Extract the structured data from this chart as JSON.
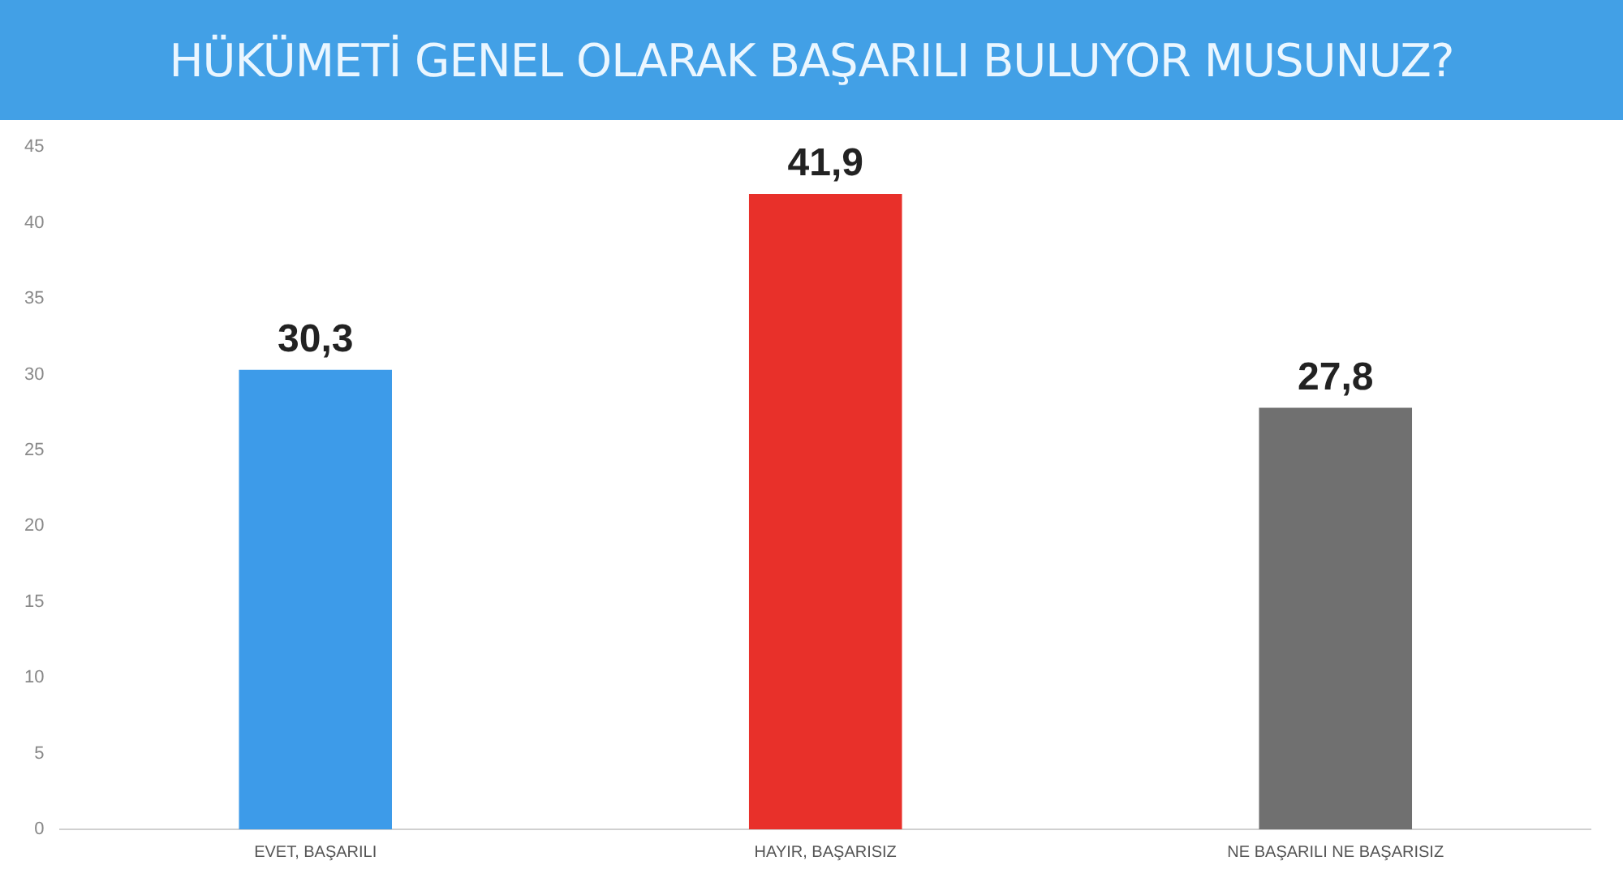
{
  "chart_data": {
    "type": "bar",
    "title": "HÜKÜMETİ GENEL OLARAK BAŞARILI BULUYOR MUSUNUZ?",
    "categories": [
      "EVET, BAŞARILI",
      "HAYIR, BAŞARISIZ",
      "NE BAŞARILI NE BAŞARISIZ"
    ],
    "values": [
      30.3,
      41.9,
      27.8
    ],
    "colors": [
      "#3d9be9",
      "#e8302a",
      "#707070"
    ],
    "ylim": [
      0,
      45
    ],
    "yticks": [
      0,
      5,
      10,
      15,
      20,
      25,
      30,
      35,
      40,
      45
    ],
    "value_labels": [
      "30,3",
      "41,9",
      "27,8"
    ],
    "grid": false,
    "legend": false
  }
}
